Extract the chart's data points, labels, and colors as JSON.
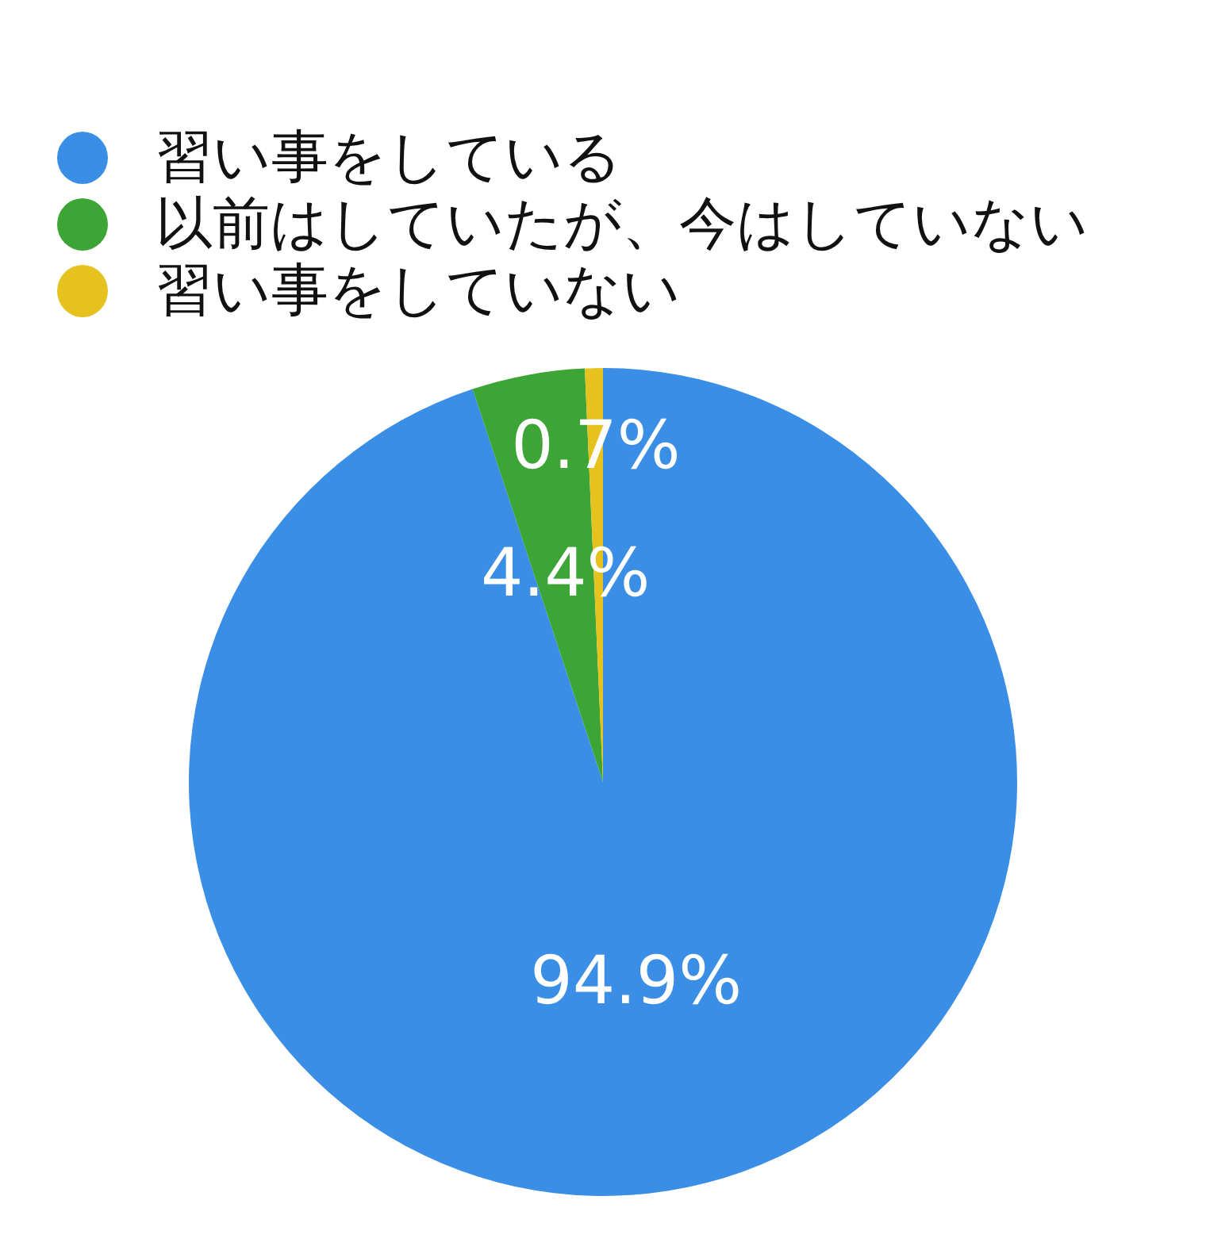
{
  "chart_data": {
    "type": "pie",
    "categories": [
      "習い事をしている",
      "以前はしていたが、今はしていない",
      "習い事をしていない"
    ],
    "values": [
      94.9,
      4.4,
      0.7
    ],
    "colors": [
      "#3a8ee6",
      "#3da535",
      "#e6c21e"
    ],
    "value_labels": [
      "94.9%",
      "4.4%",
      "0.7%"
    ],
    "legend": "top left"
  }
}
